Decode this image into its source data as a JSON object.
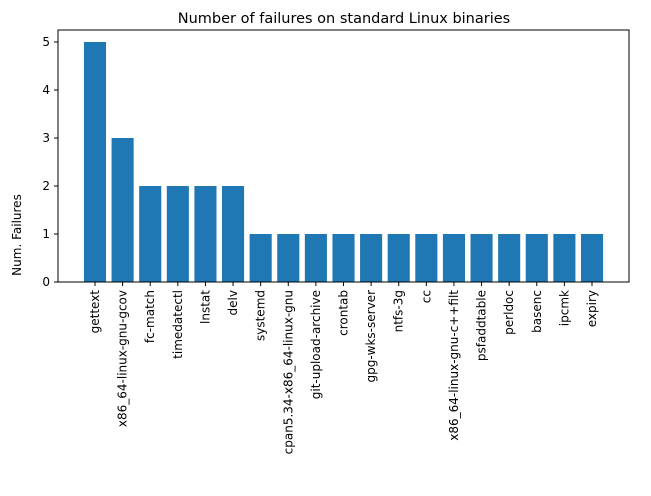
{
  "chart_data": {
    "type": "bar",
    "title": "Number of failures on standard Linux binaries",
    "xlabel": "",
    "ylabel": "Num. Failures",
    "categories": [
      "gettext",
      "x86_64-linux-gnu-gcov",
      "fc-match",
      "timedatectl",
      "lnstat",
      "delv",
      "systemd",
      "cpan5.34-x86_64-linux-gnu",
      "git-upload-archive",
      "crontab",
      "gpg-wks-server",
      "ntfs-3g",
      "cc",
      "x86_64-linux-gnu-c++filt",
      "psfaddtable",
      "perldoc",
      "basenc",
      "ipcmk",
      "expiry"
    ],
    "values": [
      5,
      3,
      2,
      2,
      2,
      2,
      1,
      1,
      1,
      1,
      1,
      1,
      1,
      1,
      1,
      1,
      1,
      1,
      1
    ],
    "ylim": [
      0,
      5.25
    ],
    "yticks": [
      0,
      1,
      2,
      3,
      4,
      5
    ],
    "bar_color": "#1f77b4",
    "grid": false,
    "legend": "none"
  }
}
